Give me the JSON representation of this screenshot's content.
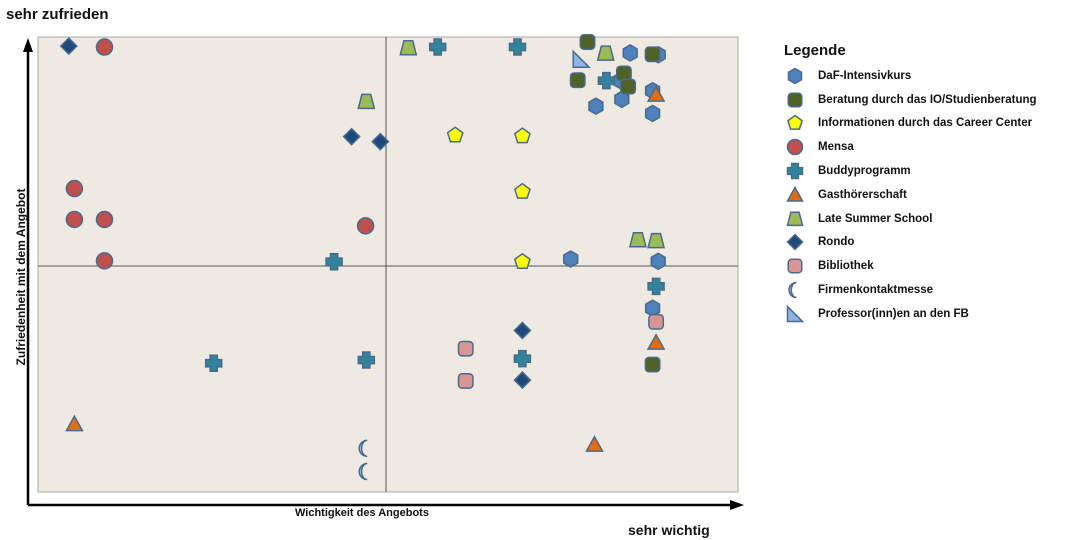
{
  "chart_data": {
    "type": "scatter",
    "title": "",
    "top_label": "sehr zufrieden",
    "bottom_label": "sehr wichtig",
    "xlabel": "Wichtigkeit des Angebots",
    "ylabel": "Zufriedenheit mit dem Angebot",
    "legend_title": "Legende",
    "legend_position": "right",
    "grid": false,
    "colors": {
      "plot_background": "#eeeae2",
      "marker_outline": "#4a6a8c"
    },
    "series": [
      {
        "name": "DaF-Intensivkurs",
        "shape": "hexagon",
        "color": "#4f81bd",
        "points": [
          [
            0.846,
            0.965
          ],
          [
            0.886,
            0.961
          ],
          [
            0.832,
            0.904
          ],
          [
            0.878,
            0.882
          ],
          [
            0.878,
            0.832
          ],
          [
            0.797,
            0.848
          ],
          [
            0.834,
            0.863
          ],
          [
            0.761,
            0.512
          ],
          [
            0.886,
            0.507
          ],
          [
            0.878,
            0.404
          ]
        ]
      },
      {
        "name": "Beratung durch das IO/Studienberatung",
        "shape": "rounded-square",
        "color": "#4f6228",
        "points": [
          [
            0.785,
            0.989
          ],
          [
            0.878,
            0.962
          ],
          [
            0.837,
            0.92
          ],
          [
            0.771,
            0.905
          ],
          [
            0.843,
            0.891
          ],
          [
            0.878,
            0.28
          ]
        ]
      },
      {
        "name": "Informationen durch das Career Center",
        "shape": "pentagon",
        "color": "#ffff00",
        "points": [
          [
            0.596,
            0.784
          ],
          [
            0.692,
            0.782
          ],
          [
            0.692,
            0.66
          ],
          [
            0.692,
            0.506
          ]
        ]
      },
      {
        "name": "Mensa",
        "shape": "circle",
        "color": "#c0504d",
        "points": [
          [
            0.095,
            0.978
          ],
          [
            0.052,
            0.667
          ],
          [
            0.052,
            0.599
          ],
          [
            0.095,
            0.599
          ],
          [
            0.468,
            0.585
          ],
          [
            0.095,
            0.508
          ]
        ]
      },
      {
        "name": "Buddyprogramm",
        "shape": "cross",
        "color": "#31849b",
        "points": [
          [
            0.571,
            0.978
          ],
          [
            0.685,
            0.978
          ],
          [
            0.812,
            0.904
          ],
          [
            0.883,
            0.452
          ],
          [
            0.423,
            0.506
          ],
          [
            0.469,
            0.29
          ],
          [
            0.692,
            0.293
          ],
          [
            0.251,
            0.283
          ]
        ]
      },
      {
        "name": "Gasthörerschaft",
        "shape": "triangle",
        "color": "#e46c0a",
        "points": [
          [
            0.883,
            0.873
          ],
          [
            0.883,
            0.328
          ],
          [
            0.052,
            0.149
          ],
          [
            0.795,
            0.104
          ]
        ]
      },
      {
        "name": "Late Summer School",
        "shape": "trapezoid",
        "color": "#9bbb59",
        "points": [
          [
            0.529,
            0.976
          ],
          [
            0.811,
            0.964
          ],
          [
            0.469,
            0.858
          ],
          [
            0.857,
            0.554
          ],
          [
            0.883,
            0.552
          ]
        ]
      },
      {
        "name": "Rondo",
        "shape": "diamond",
        "color": "#1f497d",
        "points": [
          [
            0.044,
            0.98
          ],
          [
            0.448,
            0.781
          ],
          [
            0.489,
            0.77
          ],
          [
            0.692,
            0.355
          ],
          [
            0.692,
            0.246
          ]
        ]
      },
      {
        "name": "Bibliothek",
        "shape": "rounded-square",
        "color": "#d99694",
        "points": [
          [
            0.883,
            0.374
          ],
          [
            0.611,
            0.315
          ],
          [
            0.611,
            0.244
          ]
        ]
      },
      {
        "name": "Firmenkontaktmesse",
        "shape": "crescent",
        "color": "#b3b9d9",
        "points": [
          [
            0.468,
            0.096
          ],
          [
            0.468,
            0.045
          ]
        ]
      },
      {
        "name": "Professor(inn)en an den FB",
        "shape": "right-triangle",
        "color": "#8eb4e3",
        "points": [
          [
            0.776,
            0.951
          ]
        ]
      }
    ]
  }
}
